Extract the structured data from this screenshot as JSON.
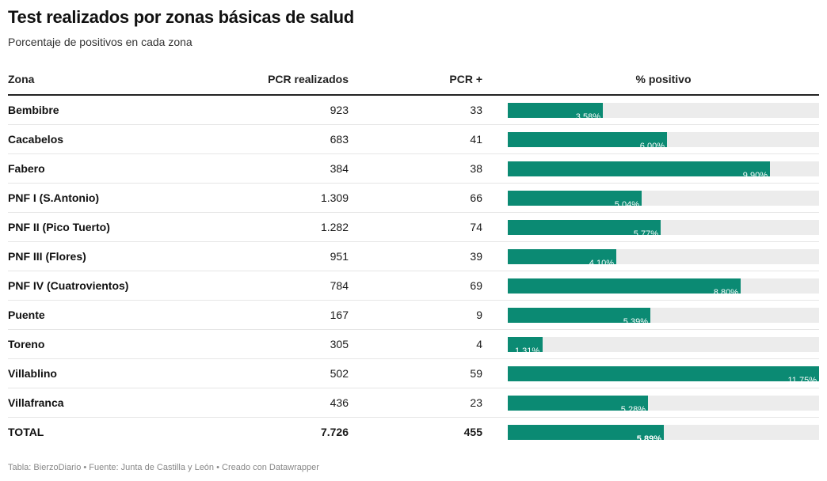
{
  "header": {
    "title": "Test realizados por zonas básicas de salud",
    "subtitle": "Porcentaje de positivos en cada zona"
  },
  "columns": {
    "zona": "Zona",
    "pcr_realizados": "PCR realizados",
    "pcr_pos": "PCR +",
    "pct": "% positivo"
  },
  "footer": {
    "text": "Tabla: BierzoDiario • Fuente: Junta de Castilla y León • Creado con Datawrapper"
  },
  "colors": {
    "bar": "#0b8a73",
    "track": "#ececec"
  },
  "chart_data": {
    "type": "table",
    "title": "Test realizados por zonas básicas de salud",
    "subtitle": "Porcentaje de positivos en cada zona",
    "columns": [
      "Zona",
      "PCR realizados",
      "PCR +",
      "% positivo"
    ],
    "pct_max": 11.75,
    "rows": [
      {
        "zona": "Bembibre",
        "pcr": "923",
        "pos": "33",
        "pct": 3.58,
        "pct_label": "3,58%"
      },
      {
        "zona": "Cacabelos",
        "pcr": "683",
        "pos": "41",
        "pct": 6.0,
        "pct_label": "6,00%"
      },
      {
        "zona": "Fabero",
        "pcr": "384",
        "pos": "38",
        "pct": 9.9,
        "pct_label": "9,90%"
      },
      {
        "zona": "PNF I (S.Antonio)",
        "pcr": "1.309",
        "pos": "66",
        "pct": 5.04,
        "pct_label": "5,04%"
      },
      {
        "zona": "PNF II (Pico Tuerto)",
        "pcr": "1.282",
        "pos": "74",
        "pct": 5.77,
        "pct_label": "5,77%"
      },
      {
        "zona": "PNF III (Flores)",
        "pcr": "951",
        "pos": "39",
        "pct": 4.1,
        "pct_label": "4,10%"
      },
      {
        "zona": "PNF IV (Cuatrovientos)",
        "pcr": "784",
        "pos": "69",
        "pct": 8.8,
        "pct_label": "8,80%"
      },
      {
        "zona": "Puente",
        "pcr": "167",
        "pos": "9",
        "pct": 5.39,
        "pct_label": "5,39%"
      },
      {
        "zona": "Toreno",
        "pcr": "305",
        "pos": "4",
        "pct": 1.31,
        "pct_label": "1,31%"
      },
      {
        "zona": "Villablino",
        "pcr": "502",
        "pos": "59",
        "pct": 11.75,
        "pct_label": "11,75%"
      },
      {
        "zona": "Villafranca",
        "pcr": "436",
        "pos": "23",
        "pct": 5.28,
        "pct_label": "5,28%"
      },
      {
        "zona": "TOTAL",
        "pcr": "7.726",
        "pos": "455",
        "pct": 5.89,
        "pct_label": "5,89%",
        "total": true
      }
    ]
  }
}
